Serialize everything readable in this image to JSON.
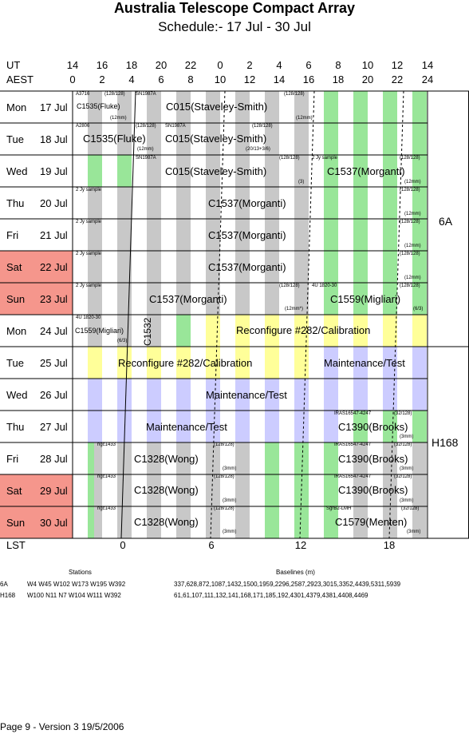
{
  "header": {
    "title": "Australia Telescope Compact Array",
    "subtitle": "Schedule:- 17 Jul - 30 Jul"
  },
  "axes": {
    "ut_label": "UT",
    "aest_label": "AEST",
    "lst_label": "LST",
    "ut_ticks": [
      "14",
      "16",
      "18",
      "20",
      "22",
      "0",
      "2",
      "4",
      "6",
      "8",
      "10",
      "12",
      "14"
    ],
    "aest_ticks": [
      "0",
      "2",
      "4",
      "6",
      "8",
      "10",
      "12",
      "14",
      "16",
      "18",
      "20",
      "22",
      "24"
    ],
    "lst_ticks": [
      "0",
      "6",
      "12",
      "18"
    ]
  },
  "colors": {
    "grey": "#c8c8c8",
    "green": "#99e699",
    "yellow": "#ffff99",
    "lavender": "#ccccff",
    "weekend": "#f5968c"
  },
  "days": [
    {
      "dow": "Mon",
      "date": "17 Jul",
      "weekend": false
    },
    {
      "dow": "Tue",
      "date": "18 Jul",
      "weekend": false
    },
    {
      "dow": "Wed",
      "date": "19 Jul",
      "weekend": false
    },
    {
      "dow": "Thu",
      "date": "20 Jul",
      "weekend": false
    },
    {
      "dow": "Fri",
      "date": "21 Jul",
      "weekend": false
    },
    {
      "dow": "Sat",
      "date": "22 Jul",
      "weekend": true
    },
    {
      "dow": "Sun",
      "date": "23 Jul",
      "weekend": true
    },
    {
      "dow": "Mon",
      "date": "24 Jul",
      "weekend": false
    },
    {
      "dow": "Tue",
      "date": "25 Jul",
      "weekend": false
    },
    {
      "dow": "Wed",
      "date": "26 Jul",
      "weekend": false
    },
    {
      "dow": "Thu",
      "date": "27 Jul",
      "weekend": false
    },
    {
      "dow": "Fri",
      "date": "28 Jul",
      "weekend": false
    },
    {
      "dow": "Sat",
      "date": "29 Jul",
      "weekend": true
    },
    {
      "dow": "Sun",
      "date": "30 Jul",
      "weekend": true
    }
  ],
  "configs": [
    {
      "name": "6A"
    },
    {
      "name": "H168"
    }
  ],
  "programs": {
    "c015_mon": "C015(Staveley-Smith)",
    "c1535_mon": "C1535(Fluke)",
    "c1535_tue": "C1535(Fluke)",
    "c015_tue": "C015(Staveley-Smith)",
    "c015_wed": "C015(Staveley-Smith)",
    "c1537_wed": "C1537(Morganti)",
    "c1537_thu": "C1537(Morganti)",
    "c1537_fri": "C1537(Morganti)",
    "c1537_sat": "C1537(Morganti)",
    "c1537_sun": "C1537(Morganti)",
    "c1559_sun": "C1559(Migliari)",
    "c1559_mon": "C1559(Migliari)",
    "c1532_mon": "C1532",
    "reconf_mon": "Reconfigure #282/Calibration",
    "reconf_tue": "Reconfigure #282/Calibration",
    "maint_tue": "Maintenance/Test",
    "maint_wed": "Maintenance/Test",
    "maint_thu": "Maintenance/Test",
    "c1390_thu": "C1390(Brooks)",
    "c1328_fri": "C1328(Wong)",
    "c1390_fri": "C1390(Brooks)",
    "c1328_sat": "C1328(Wong)",
    "c1390_sat": "C1390(Brooks)",
    "c1328_sun": "C1328(Wong)",
    "c1579_sun": "C1579(Menten)"
  },
  "notes": {
    "a3716": "A3716",
    "b128_mon1": "(128/128)",
    "sn1987a_mon": "SN1987A",
    "b128_mon2": "(128/128)",
    "mm12_mon1": "(12mm)",
    "mm12_mon2": "(12mm)",
    "a2806": "A2806",
    "b128_tue1": "(128/128)",
    "sn1987a_tue": "SN1987A",
    "b128_tue2": "(128/128)",
    "mm12_tue": "(12mm)",
    "b20134": "(20/13+3/6)",
    "sn1987a_wed": "SN1987A",
    "b128_wed1": "(128/128)",
    "jy_wed": "2 Jy sample",
    "b128_wed2": "(128/128)",
    "mm3_wed": "(3)",
    "mm12_wed": "(12mm)",
    "jy_thu": "2 Jy sample",
    "b128_thu": "(128/128)",
    "mm12_thu": "(12mm)",
    "jy_fri": "2 Jy sample",
    "b128_fri": "(128/128)",
    "mm12_fri": "(12mm)",
    "jy_sat": "2 Jy sample",
    "b128_sat": "(128/128)",
    "mm12_sat": "(12mm)",
    "jy_sun": "2 Jy sample",
    "b128_sun1": "(128/128)",
    "u1820_sun": "4U 1820-30",
    "b128_sun2": "(128/128)",
    "mm12_sun": "(12mm*)",
    "b63_sun": "(6/3)",
    "u1820_mon": "4U 1820-30",
    "b63_mon": "(6/3)",
    "iras_thu": "IRAS16547-4247",
    "b32_thu": "(32/128)",
    "mm3_thu": "(3mm)",
    "ngc_fri": "ngc1433",
    "b128_fri2": "(128/128)",
    "mm3_fri1": "(3mm)",
    "iras_fri": "IRAS16547-4247",
    "b32_fri": "(32/128)",
    "mm3_fri2": "(3mm)",
    "ngc_sat": "ngc1433",
    "b128_sat2": "(128/128)",
    "mm3_sat1": "(3mm)",
    "iras_sat": "IRAS16547-4247",
    "b32_sat": "(32/128)",
    "mm3_sat2": "(3mm)",
    "ngc_sun": "ngc1433",
    "b128_sun3": "(128/128)",
    "mm3_sun1": "(3mm)",
    "sgrb2": "SgrB2-LMH",
    "b32_sun": "(32/128)",
    "mm3_sun2": "(3mm)"
  },
  "stations": {
    "heading": "Stations",
    "rows": [
      {
        "config": "6A",
        "list": "W4 W45 W102 W173 W195 W392"
      },
      {
        "config": "H168",
        "list": "W100 N11 N7 W104 W111 W392"
      }
    ]
  },
  "baselines": {
    "heading": "Baselines (m)",
    "rows": [
      "337,628,872,1087,1432,1500,1959,2296,2587,2923,3015,3352,4439,5311,5939",
      "61,61,107,111,132,141,168,171,185,192,4301,4379,4381,4408,4469"
    ]
  },
  "footer": "Page 9 - Version 3  19/5/2006"
}
